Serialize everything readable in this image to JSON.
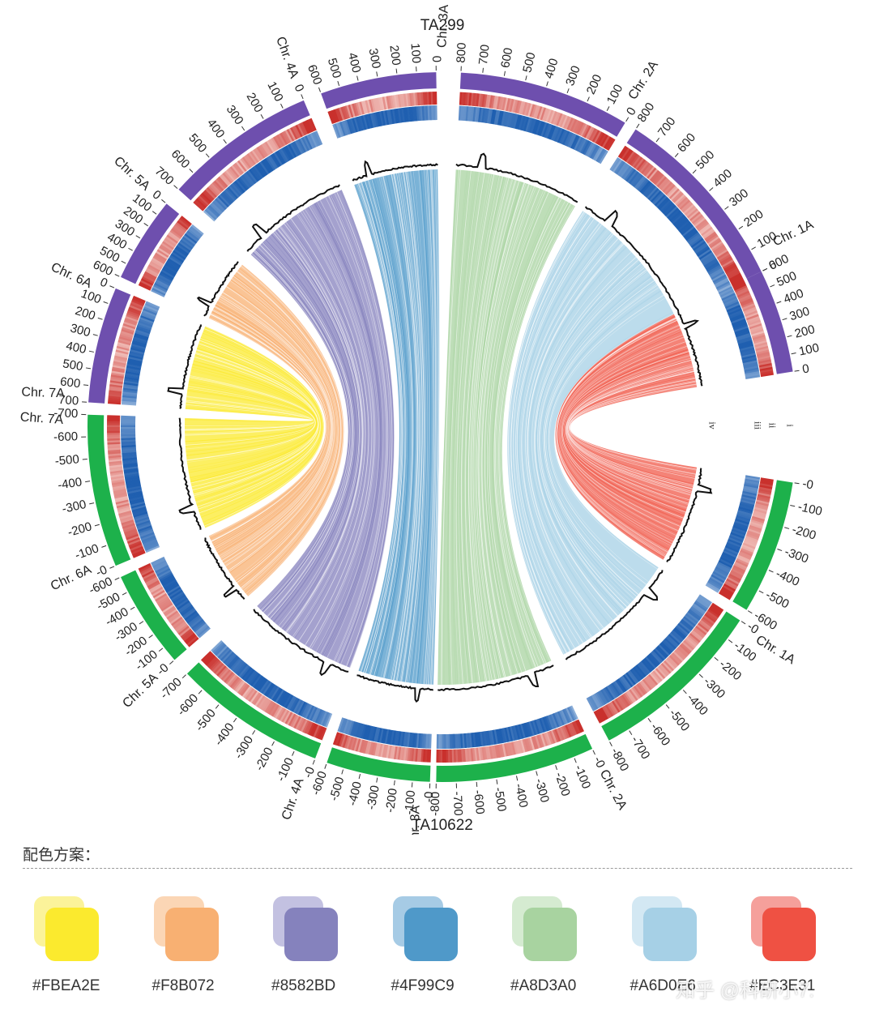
{
  "genomes": {
    "top": "TA299",
    "bottom": "TA10622"
  },
  "chromosomes": {
    "top": [
      {
        "label": "Chr. 1A",
        "length": 600,
        "ticks": [
          "0",
          "100",
          "200",
          "300",
          "400",
          "500",
          "600"
        ]
      },
      {
        "label": "Chr. 2A",
        "length": 800,
        "ticks": [
          "0",
          "100",
          "200",
          "300",
          "400",
          "500",
          "600",
          "700",
          "800"
        ]
      },
      {
        "label": "Chr. 3A",
        "length": 800,
        "ticks": [
          "0",
          "100",
          "200",
          "300",
          "400",
          "500",
          "600",
          "700",
          "800"
        ]
      },
      {
        "label": "Chr. 4A",
        "length": 600,
        "ticks": [
          "0",
          "100",
          "200",
          "300",
          "400",
          "500",
          "600"
        ]
      },
      {
        "label": "Chr. 5A",
        "length": 700,
        "ticks": [
          "0",
          "100",
          "200",
          "300",
          "400",
          "500",
          "600",
          "700"
        ]
      },
      {
        "label": "Chr. 6A",
        "length": 600,
        "ticks": [
          "0",
          "100",
          "200",
          "300",
          "400",
          "500",
          "600"
        ]
      },
      {
        "label": "Chr. 7A",
        "length": 700,
        "ticks": [
          "0",
          "100",
          "200",
          "300",
          "400",
          "500",
          "600",
          "700"
        ]
      }
    ],
    "bottom": [
      {
        "label": "Chr. 1A",
        "length": 600,
        "ticks": [
          "-0",
          "-100",
          "-200",
          "-300",
          "-400",
          "-500",
          "-600"
        ]
      },
      {
        "label": "Chr. 2A",
        "length": 800,
        "ticks": [
          "-0",
          "-100",
          "-200",
          "-300",
          "-400",
          "-500",
          "-600",
          "-700",
          "-800"
        ]
      },
      {
        "label": "Chr. 3A",
        "length": 800,
        "ticks": [
          "-0",
          "-100",
          "-200",
          "-300",
          "-400",
          "-500",
          "-600",
          "-700",
          "-800"
        ]
      },
      {
        "label": "Chr. 4A",
        "length": 600,
        "ticks": [
          "-0",
          "-100",
          "-200",
          "-300",
          "-400",
          "-500",
          "-600"
        ]
      },
      {
        "label": "Chr. 5A",
        "length": 700,
        "ticks": [
          "-0",
          "-100",
          "-200",
          "-300",
          "-400",
          "-500",
          "-600",
          "-700"
        ]
      },
      {
        "label": "Chr. 6A",
        "length": 600,
        "ticks": [
          "-0",
          "-100",
          "-200",
          "-300",
          "-400",
          "-500",
          "-600"
        ]
      },
      {
        "label": "Chr. 7A",
        "length": 700,
        "ticks": [
          "-0",
          "-100",
          "-200",
          "-300",
          "-400",
          "-500",
          "-600",
          "-700"
        ]
      }
    ]
  },
  "track_labels": [
    "i",
    "ii",
    "iii",
    "iv"
  ],
  "colors": {
    "top_band": "#6E4FAE",
    "bottom_band": "#1DB14B",
    "heat_red": "#C9302C",
    "heat_blue": "#1F5FB0",
    "links": [
      "#F05A4A",
      "#A6D0E6",
      "#A8D3A0",
      "#4F99C9",
      "#8582BD",
      "#F8B072",
      "#FBEA2E"
    ]
  },
  "legend": {
    "title": "配色方案：",
    "swatches": [
      {
        "code": "#FBEA2E",
        "front": "#FBEA2E",
        "back": "#FBF39A"
      },
      {
        "code": "#F8B072",
        "front": "#F8B072",
        "back": "#FBD6B5"
      },
      {
        "code": "#8582BD",
        "front": "#8582BD",
        "back": "#C3C1E1"
      },
      {
        "code": "#4F99C9",
        "front": "#4F99C9",
        "back": "#A6CBE5"
      },
      {
        "code": "#A8D3A0",
        "front": "#A8D3A0",
        "back": "#D5EBD1"
      },
      {
        "code": "#A6D0E6",
        "front": "#A6D0E6",
        "back": "#D3E8F3"
      },
      {
        "code": "#EC3E31",
        "front": "#EF5143",
        "back": "#F5A09B"
      }
    ]
  },
  "watermark": "知乎 @科研小7."
}
